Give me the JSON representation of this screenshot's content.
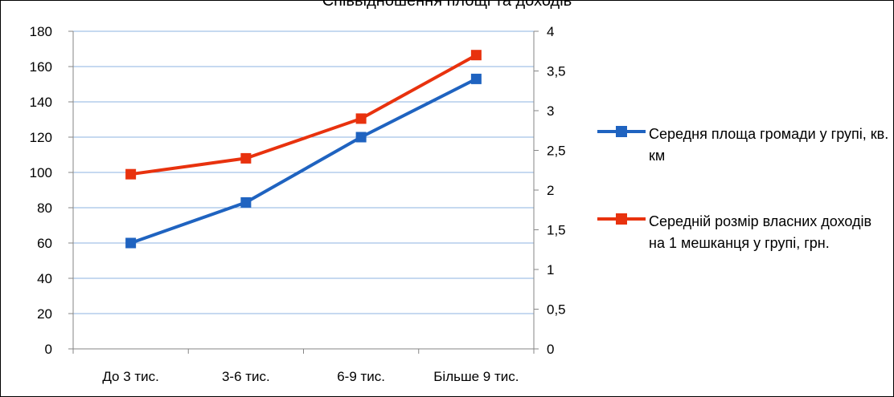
{
  "chart_data": {
    "type": "line",
    "title": "Співвідношення площі та доходів",
    "categories": [
      "До 3 тис.",
      "3-6 тис.",
      "6-9 тис.",
      "Більше 9 тис."
    ],
    "series": [
      {
        "name": "Середня площа громади у групі, кв. км",
        "axis": "left",
        "color": "#1F63C0",
        "values": [
          60,
          83,
          120,
          153
        ]
      },
      {
        "name": "Середній розмір власних доходів на 1 мешканця у групі, грн.",
        "axis": "right",
        "color": "#E8320E",
        "values": [
          2.2,
          2.4,
          2.9,
          3.7
        ]
      }
    ],
    "y_left": {
      "range": [
        0,
        180
      ],
      "ticks": [
        "0",
        "20",
        "40",
        "60",
        "80",
        "100",
        "120",
        "140",
        "160",
        "180"
      ]
    },
    "y_right": {
      "range": [
        0,
        4
      ],
      "ticks": [
        "0",
        "0,5",
        "1",
        "1,5",
        "2",
        "2,5",
        "3",
        "3,5",
        "4"
      ]
    },
    "grid": true,
    "gridColor": "#8DB3E2",
    "legend_position": "right"
  }
}
